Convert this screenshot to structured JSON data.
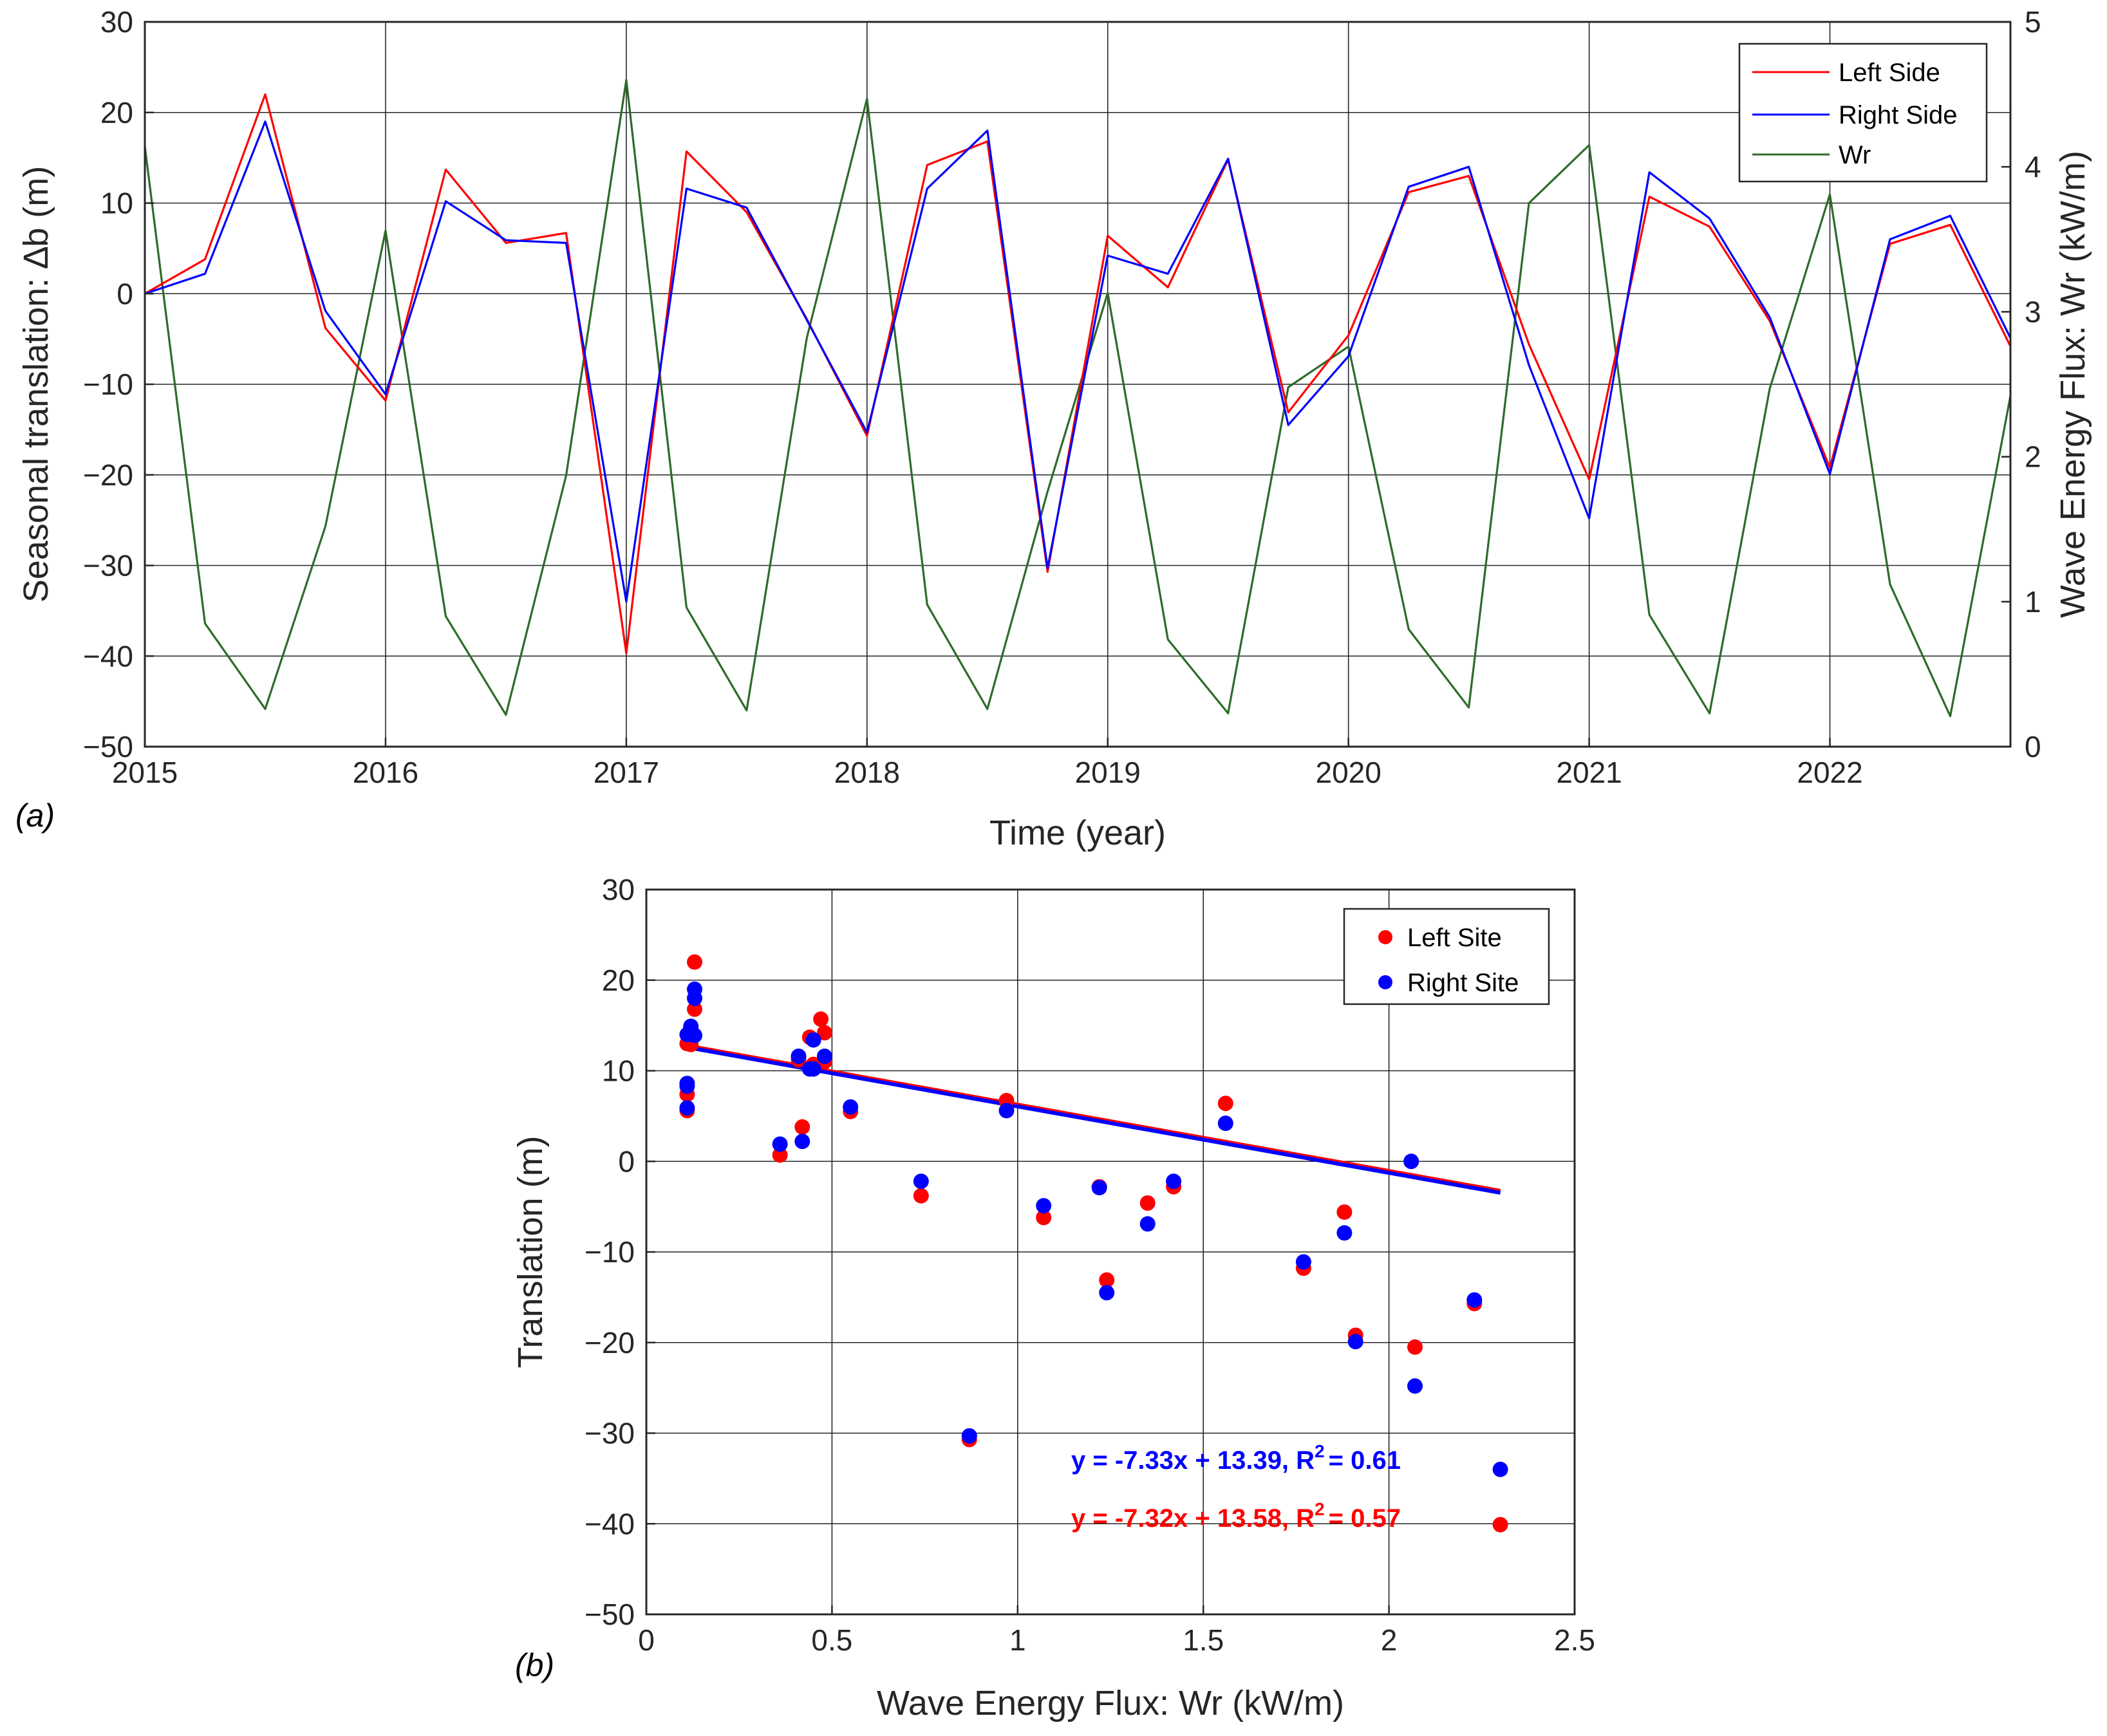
{
  "figure": {
    "panel_a_label": "(a)",
    "panel_b_label": "(b)"
  },
  "colors": {
    "left": "#ff0000",
    "right": "#0000ff",
    "wr": "#2e6b2a",
    "grid": "#262626",
    "axis": "#262626"
  },
  "chart_data": [
    {
      "id": "panel_a",
      "type": "line",
      "title": "",
      "xlabel": "Time (year)",
      "ylabel": "Seasonal translation: ∆b (m)",
      "y2label": "Wave Energy Flux: Wr (kW/m)",
      "xlim": [
        2015,
        2022.75
      ],
      "ylim": [
        -50,
        30
      ],
      "y2lim": [
        0,
        5
      ],
      "xticks": [
        2015,
        2016,
        2017,
        2018,
        2019,
        2020,
        2021,
        2022
      ],
      "xtick_labels": [
        "2015",
        "2016",
        "2017",
        "2018",
        "2019",
        "2020",
        "2021",
        "2022"
      ],
      "yticks": [
        -50,
        -40,
        -30,
        -20,
        -10,
        0,
        10,
        20,
        30
      ],
      "ytick_labels": [
        "−50",
        "−40",
        "−30",
        "−20",
        "−10",
        "0",
        "10",
        "20",
        "30"
      ],
      "y2ticks": [
        0,
        1,
        2,
        3,
        4,
        5
      ],
      "y2tick_labels": [
        "0",
        "1",
        "2",
        "3",
        "4",
        "5"
      ],
      "grid": true,
      "legend": "top-right",
      "x": [
        2015,
        2015.25,
        2015.5,
        2015.75,
        2016,
        2016.25,
        2016.5,
        2016.75,
        2017,
        2017.25,
        2017.5,
        2017.75,
        2018,
        2018.25,
        2018.5,
        2018.75,
        2019,
        2019.25,
        2019.5,
        2019.75,
        2020,
        2020.25,
        2020.5,
        2020.75,
        2021,
        2021.25,
        2021.5,
        2021.75,
        2022,
        2022.25,
        2022.5,
        2022.75
      ],
      "series": [
        {
          "name": "Left Side",
          "axis": "left",
          "color": "#ff0000",
          "values": [
            0,
            3.8,
            22,
            -3.8,
            -11.8,
            13.7,
            5.6,
            6.7,
            -39.7,
            15.7,
            9.0,
            -2.8,
            -15.7,
            14.2,
            16.8,
            -30.7,
            6.4,
            0.7,
            14.8,
            -13.1,
            -4.6,
            11.2,
            13.0,
            -5.6,
            -20.5,
            10.7,
            7.4,
            -3.0,
            -19.2,
            5.5,
            7.6,
            -5.8
          ]
        },
        {
          "name": "Right Side",
          "axis": "left",
          "color": "#0000ff",
          "values": [
            0,
            2.2,
            19,
            -1.9,
            -11.1,
            10.2,
            5.9,
            5.6,
            -34,
            11.6,
            9.5,
            -2.9,
            -15.3,
            11.6,
            18.0,
            -30.3,
            4.2,
            2.2,
            14.9,
            -14.5,
            -6.9,
            11.8,
            14.0,
            -7.9,
            -24.8,
            13.4,
            8.3,
            -2.6,
            -19.9,
            6.0,
            8.6,
            -4.9
          ]
        },
        {
          "name": "Wr",
          "axis": "right",
          "color": "#2e6b2a",
          "values": [
            4.14,
            0.85,
            0.26,
            1.52,
            3.56,
            0.9,
            0.22,
            1.87,
            4.6,
            0.96,
            0.25,
            2.82,
            4.47,
            0.98,
            0.26,
            1.76,
            3.13,
            0.74,
            0.23,
            2.48,
            2.76,
            0.81,
            0.27,
            3.75,
            4.15,
            0.91,
            0.23,
            2.47,
            3.81,
            1.12,
            0.21,
            2.42
          ]
        }
      ]
    },
    {
      "id": "panel_b",
      "type": "scatter",
      "title": "",
      "xlabel": "Wave Energy Flux: Wr (kW/m)",
      "ylabel": "Translation (m)",
      "xlim": [
        0,
        2.5
      ],
      "ylim": [
        -50,
        30
      ],
      "xticks": [
        0,
        0.5,
        1,
        1.5,
        2,
        2.5
      ],
      "xtick_labels": [
        "0",
        "0.5",
        "1",
        "1.5",
        "2",
        "2.5"
      ],
      "yticks": [
        -50,
        -40,
        -30,
        -20,
        -10,
        0,
        10,
        20,
        30
      ],
      "ytick_labels": [
        "−50",
        "−40",
        "−30",
        "−20",
        "−10",
        "0",
        "10",
        "20",
        "30"
      ],
      "grid": true,
      "legend": "top-right",
      "series": [
        {
          "name": "Left Site",
          "color": "#ff0000",
          "x": [
            2.06,
            0.36,
            0.42,
            0.74,
            0.87,
            0.97,
            1.07,
            1.22,
            1.24,
            1.35,
            1.42,
            1.56,
            1.77,
            1.88,
            1.91,
            2.07,
            2.23,
            2.3,
            0.13,
            0.13,
            0.12,
            0.11,
            0.12,
            0.11,
            0.11,
            0.41,
            0.44,
            0.47,
            0.48,
            0.45,
            0.48,
            0.55
          ],
          "y": [
            0,
            0.7,
            3.8,
            -3.8,
            -30.7,
            6.7,
            -6.2,
            -2.8,
            -13.1,
            -4.6,
            -2.8,
            6.4,
            -11.8,
            -5.6,
            -19.2,
            -20.5,
            -15.7,
            -40.1,
            22,
            16.8,
            14.8,
            13.0,
            12.9,
            7.4,
            5.6,
            11.2,
            13.7,
            15.7,
            14.2,
            10.7,
            11.0,
            5.5
          ]
        },
        {
          "name": "Right Site",
          "color": "#0000ff",
          "x": [
            2.06,
            0.36,
            0.42,
            0.74,
            0.87,
            0.97,
            1.07,
            1.22,
            1.24,
            1.35,
            1.42,
            1.56,
            1.77,
            1.88,
            1.91,
            2.07,
            2.23,
            2.3,
            0.13,
            0.13,
            0.12,
            0.11,
            0.13,
            0.11,
            0.11,
            0.41,
            0.44,
            0.45,
            0.48,
            0.45,
            0.11,
            0.55
          ],
          "y": [
            0,
            1.9,
            2.2,
            -2.2,
            -30.3,
            5.6,
            -4.9,
            -2.9,
            -14.5,
            -6.9,
            -2.2,
            4.2,
            -11.1,
            -7.9,
            -19.9,
            -24.8,
            -15.3,
            -34,
            19,
            18.0,
            14.9,
            14.0,
            13.9,
            8.6,
            5.9,
            11.6,
            10.2,
            13.4,
            11.6,
            10.2,
            8.3,
            6.0
          ]
        }
      ],
      "fits": [
        {
          "name": "Left Site fit",
          "color": "#ff0000",
          "slope": -7.32,
          "intercept": 13.58,
          "x_range": [
            0.11,
            2.3
          ],
          "label": "y = -7.32x + 13.58, R",
          "r2": "= 0.57"
        },
        {
          "name": "Right Site fit",
          "color": "#0000ff",
          "slope": -7.33,
          "intercept": 13.39,
          "x_range": [
            0.11,
            2.3
          ],
          "label": "y = -7.33x + 13.39, R",
          "r2": "= 0.61"
        }
      ],
      "r2_superscript": "2"
    }
  ]
}
